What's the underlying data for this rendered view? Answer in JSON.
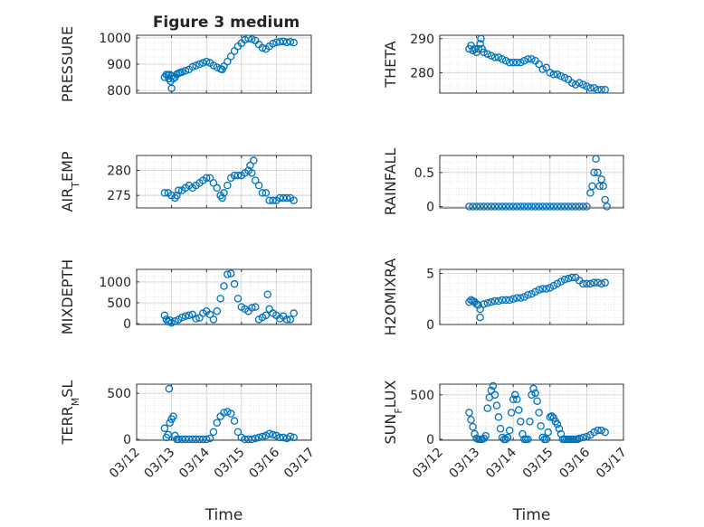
{
  "figure": {
    "title": "Figure 3 medium",
    "marker_color": "#0072BD"
  },
  "chart_data": [
    {
      "type": "scatter",
      "ylabel": "PRESSURE",
      "xlabel": "",
      "title": "Figure 3 medium",
      "xlim": [
        0,
        5
      ],
      "ylim": [
        790,
        1010
      ],
      "yticks": [
        800,
        900,
        1000
      ],
      "x": [
        0.8,
        0.85,
        0.9,
        0.95,
        1.0,
        1.05,
        1.1,
        1.15,
        1.2,
        1.25,
        1.3,
        1.4,
        1.5,
        1.6,
        1.7,
        1.8,
        1.9,
        2.0,
        2.1,
        2.2,
        2.3,
        2.4,
        2.45,
        2.5,
        2.6,
        2.7,
        2.8,
        2.9,
        3.0,
        3.1,
        3.2,
        3.3,
        3.4,
        3.5,
        3.6,
        3.7,
        3.8,
        3.9,
        4.0,
        4.1,
        4.2,
        4.3,
        4.4,
        4.5,
        0.97,
        1.0,
        0.92
      ],
      "y": [
        850,
        860,
        860,
        860,
        855,
        845,
        850,
        862,
        865,
        868,
        870,
        875,
        880,
        890,
        895,
        900,
        905,
        910,
        905,
        895,
        888,
        882,
        880,
        892,
        910,
        930,
        950,
        968,
        980,
        993,
        998,
        995,
        990,
        975,
        962,
        958,
        968,
        978,
        983,
        985,
        987,
        983,
        985,
        982,
        835,
        808,
        845
      ]
    },
    {
      "type": "scatter",
      "ylabel": "THETA",
      "xlabel": "",
      "xlim": [
        0,
        5
      ],
      "ylim": [
        274,
        291
      ],
      "yticks": [
        280,
        290
      ],
      "x": [
        0.8,
        0.85,
        0.9,
        0.95,
        1.0,
        1.05,
        1.1,
        1.15,
        1.2,
        1.3,
        1.4,
        1.5,
        1.6,
        1.7,
        1.8,
        1.9,
        2.0,
        2.1,
        2.2,
        2.3,
        2.4,
        2.5,
        2.6,
        2.7,
        2.8,
        2.9,
        3.0,
        3.1,
        3.2,
        3.3,
        3.4,
        3.5,
        3.6,
        3.7,
        3.8,
        3.9,
        4.0,
        4.1,
        4.2,
        4.3,
        4.4,
        4.5,
        1.12
      ],
      "y": [
        287,
        288,
        286.5,
        287,
        286,
        287,
        288.5,
        287,
        286,
        285.5,
        285,
        284.5,
        284.5,
        284,
        283.5,
        283,
        283,
        283,
        283,
        283.5,
        284,
        284,
        283.5,
        282.5,
        281,
        281.5,
        280,
        279.5,
        279.5,
        279,
        278.5,
        278,
        277,
        276.5,
        277,
        276.5,
        276,
        275.5,
        275.5,
        275,
        275,
        275,
        290
      ]
    },
    {
      "type": "scatter",
      "ylabel": "AIR_TEMP",
      "xlabel": "",
      "xlim": [
        0,
        5
      ],
      "ylim": [
        272.5,
        283
      ],
      "yticks": [
        275,
        280
      ],
      "x": [
        0.8,
        0.9,
        1.0,
        1.1,
        1.15,
        1.2,
        1.3,
        1.4,
        1.5,
        1.6,
        1.7,
        1.8,
        1.9,
        2.0,
        2.1,
        2.2,
        2.3,
        2.4,
        2.45,
        2.5,
        2.6,
        2.7,
        2.8,
        2.9,
        3.0,
        3.1,
        3.2,
        3.25,
        3.3,
        3.4,
        3.5,
        3.6,
        3.7,
        3.8,
        3.9,
        4.0,
        4.1,
        4.2,
        4.3,
        4.4,
        4.5,
        3.35
      ],
      "y": [
        275.5,
        275.5,
        275,
        274.5,
        275,
        276,
        276,
        276.5,
        277,
        276.5,
        277,
        277.5,
        278,
        278.5,
        278.5,
        277.5,
        276.5,
        275,
        274.5,
        275.5,
        277,
        278.5,
        279,
        279,
        279,
        279.5,
        280,
        281,
        279.5,
        278,
        277,
        275.5,
        275.5,
        274,
        274,
        274,
        274.5,
        274.5,
        274.5,
        274.5,
        274,
        282
      ]
    },
    {
      "type": "scatter",
      "ylabel": "RAINFALL",
      "xlabel": "",
      "xlim": [
        0,
        5
      ],
      "ylim": [
        -0.02,
        0.75
      ],
      "yticks": [
        0,
        0.5
      ],
      "x": [
        0.8,
        0.9,
        1.0,
        1.1,
        1.2,
        1.3,
        1.4,
        1.5,
        1.6,
        1.7,
        1.8,
        1.9,
        2.0,
        2.1,
        2.2,
        2.3,
        2.4,
        2.5,
        2.6,
        2.7,
        2.8,
        2.9,
        3.0,
        3.1,
        3.2,
        3.3,
        3.4,
        3.5,
        3.6,
        3.7,
        3.8,
        3.9,
        4.0,
        4.1,
        4.15,
        4.2,
        4.25,
        4.3,
        4.35,
        4.4,
        4.45,
        4.5,
        4.55
      ],
      "y": [
        0,
        0,
        0,
        0,
        0,
        0,
        0,
        0,
        0,
        0,
        0,
        0,
        0,
        0,
        0,
        0,
        0,
        0,
        0,
        0,
        0,
        0,
        0,
        0,
        0,
        0,
        0,
        0,
        0,
        0,
        0,
        0,
        0,
        0.2,
        0.3,
        0.5,
        0.7,
        0.5,
        0.3,
        0.4,
        0.3,
        0.1,
        0
      ]
    },
    {
      "type": "scatter",
      "ylabel": "MIXDEPTH",
      "xlabel": "",
      "xlim": [
        0,
        5
      ],
      "ylim": [
        -20,
        1300
      ],
      "yticks": [
        0,
        500,
        1000
      ],
      "x": [
        0.8,
        0.85,
        0.9,
        0.95,
        1.0,
        1.1,
        1.2,
        1.3,
        1.4,
        1.5,
        1.6,
        1.7,
        1.8,
        1.9,
        2.0,
        2.1,
        2.2,
        2.3,
        2.4,
        2.5,
        2.6,
        2.7,
        2.8,
        2.9,
        3.0,
        3.1,
        3.2,
        3.3,
        3.4,
        3.5,
        3.6,
        3.7,
        3.8,
        3.9,
        4.0,
        4.1,
        4.2,
        4.3,
        4.4,
        4.5,
        3.75
      ],
      "y": [
        200,
        100,
        50,
        80,
        20,
        60,
        100,
        150,
        180,
        200,
        220,
        120,
        140,
        250,
        300,
        220,
        100,
        300,
        600,
        900,
        1180,
        1200,
        950,
        600,
        400,
        350,
        300,
        380,
        400,
        100,
        150,
        200,
        350,
        250,
        200,
        120,
        180,
        100,
        100,
        250,
        700
      ]
    },
    {
      "type": "scatter",
      "ylabel": "H2OMIXRA",
      "xlabel": "",
      "xlim": [
        0,
        5
      ],
      "ylim": [
        0,
        5.4
      ],
      "yticks": [
        0,
        5
      ],
      "x": [
        0.8,
        0.85,
        0.9,
        0.95,
        1.0,
        1.05,
        1.1,
        1.2,
        1.3,
        1.4,
        1.5,
        1.6,
        1.7,
        1.8,
        1.9,
        2.0,
        2.1,
        2.2,
        2.3,
        2.4,
        2.5,
        2.6,
        2.7,
        2.8,
        2.9,
        3.0,
        3.1,
        3.2,
        3.3,
        3.4,
        3.5,
        3.6,
        3.7,
        3.8,
        3.9,
        4.0,
        4.1,
        4.2,
        4.3,
        4.4,
        4.5,
        1.1
      ],
      "y": [
        2.2,
        2.4,
        2.3,
        2.2,
        2.0,
        1.9,
        1.5,
        2.0,
        2.1,
        2.2,
        2.3,
        2.3,
        2.4,
        2.4,
        2.4,
        2.5,
        2.6,
        2.6,
        2.7,
        2.9,
        3.0,
        3.2,
        3.4,
        3.5,
        3.5,
        3.6,
        3.8,
        4.0,
        4.2,
        4.4,
        4.5,
        4.6,
        4.6,
        4.3,
        4.0,
        4.0,
        4.0,
        4.1,
        4.1,
        4.0,
        4.1,
        0.7
      ]
    },
    {
      "type": "scatter",
      "ylabel": "TERR_MSL",
      "xlabel": "Time",
      "xlim": [
        0,
        5
      ],
      "ylim": [
        -10,
        600
      ],
      "yticks": [
        0,
        500
      ],
      "xticklabels": [
        "03/12",
        "03/13",
        "03/14",
        "03/15",
        "03/16",
        "03/17"
      ],
      "x": [
        0.8,
        0.85,
        0.9,
        0.95,
        1.0,
        1.05,
        1.1,
        1.15,
        1.2,
        1.3,
        1.4,
        1.5,
        1.6,
        1.7,
        1.8,
        1.9,
        2.0,
        2.1,
        2.2,
        2.3,
        2.4,
        2.5,
        2.6,
        2.7,
        2.8,
        2.9,
        3.0,
        3.1,
        3.2,
        3.3,
        3.4,
        3.5,
        3.6,
        3.7,
        3.8,
        3.9,
        4.0,
        4.1,
        4.2,
        4.3,
        4.4,
        4.5,
        0.93
      ],
      "y": [
        120,
        20,
        50,
        180,
        220,
        250,
        40,
        0,
        0,
        0,
        0,
        0,
        0,
        0,
        0,
        0,
        0,
        10,
        80,
        180,
        250,
        290,
        300,
        280,
        200,
        80,
        20,
        0,
        0,
        0,
        10,
        20,
        30,
        40,
        60,
        50,
        40,
        20,
        20,
        10,
        30,
        20,
        550
      ]
    },
    {
      "type": "scatter",
      "ylabel": "SUN_FLUX",
      "xlabel": "Time",
      "xlim": [
        0,
        5
      ],
      "ylim": [
        -10,
        620
      ],
      "yticks": [
        0,
        500
      ],
      "xticklabels": [
        "03/12",
        "03/13",
        "03/14",
        "03/15",
        "03/16",
        "03/17"
      ],
      "x": [
        0.8,
        0.85,
        0.9,
        0.95,
        1.0,
        1.05,
        1.1,
        1.15,
        1.2,
        1.25,
        1.3,
        1.35,
        1.4,
        1.45,
        1.5,
        1.55,
        1.6,
        1.65,
        1.7,
        1.75,
        1.8,
        1.85,
        1.9,
        1.95,
        2.0,
        2.05,
        2.1,
        2.15,
        2.2,
        2.25,
        2.3,
        2.35,
        2.4,
        2.45,
        2.5,
        2.55,
        2.6,
        2.65,
        2.7,
        2.75,
        2.8,
        2.85,
        2.9,
        2.95,
        3.0,
        3.05,
        3.1,
        3.15,
        3.2,
        3.25,
        3.3,
        3.35,
        3.4,
        3.45,
        3.5,
        3.55,
        3.6,
        3.65,
        3.7,
        3.75,
        3.8,
        3.9,
        4.0,
        4.1,
        4.2,
        4.3,
        4.4,
        4.5
      ],
      "y": [
        300,
        220,
        140,
        60,
        10,
        0,
        0,
        0,
        10,
        40,
        350,
        470,
        550,
        600,
        500,
        380,
        250,
        120,
        20,
        0,
        0,
        20,
        100,
        300,
        450,
        500,
        450,
        330,
        200,
        60,
        0,
        0,
        0,
        200,
        500,
        570,
        520,
        430,
        300,
        150,
        20,
        0,
        0,
        80,
        250,
        260,
        240,
        200,
        170,
        120,
        60,
        0,
        0,
        0,
        0,
        0,
        0,
        0,
        0,
        0,
        10,
        20,
        30,
        50,
        80,
        100,
        100,
        80
      ]
    }
  ]
}
